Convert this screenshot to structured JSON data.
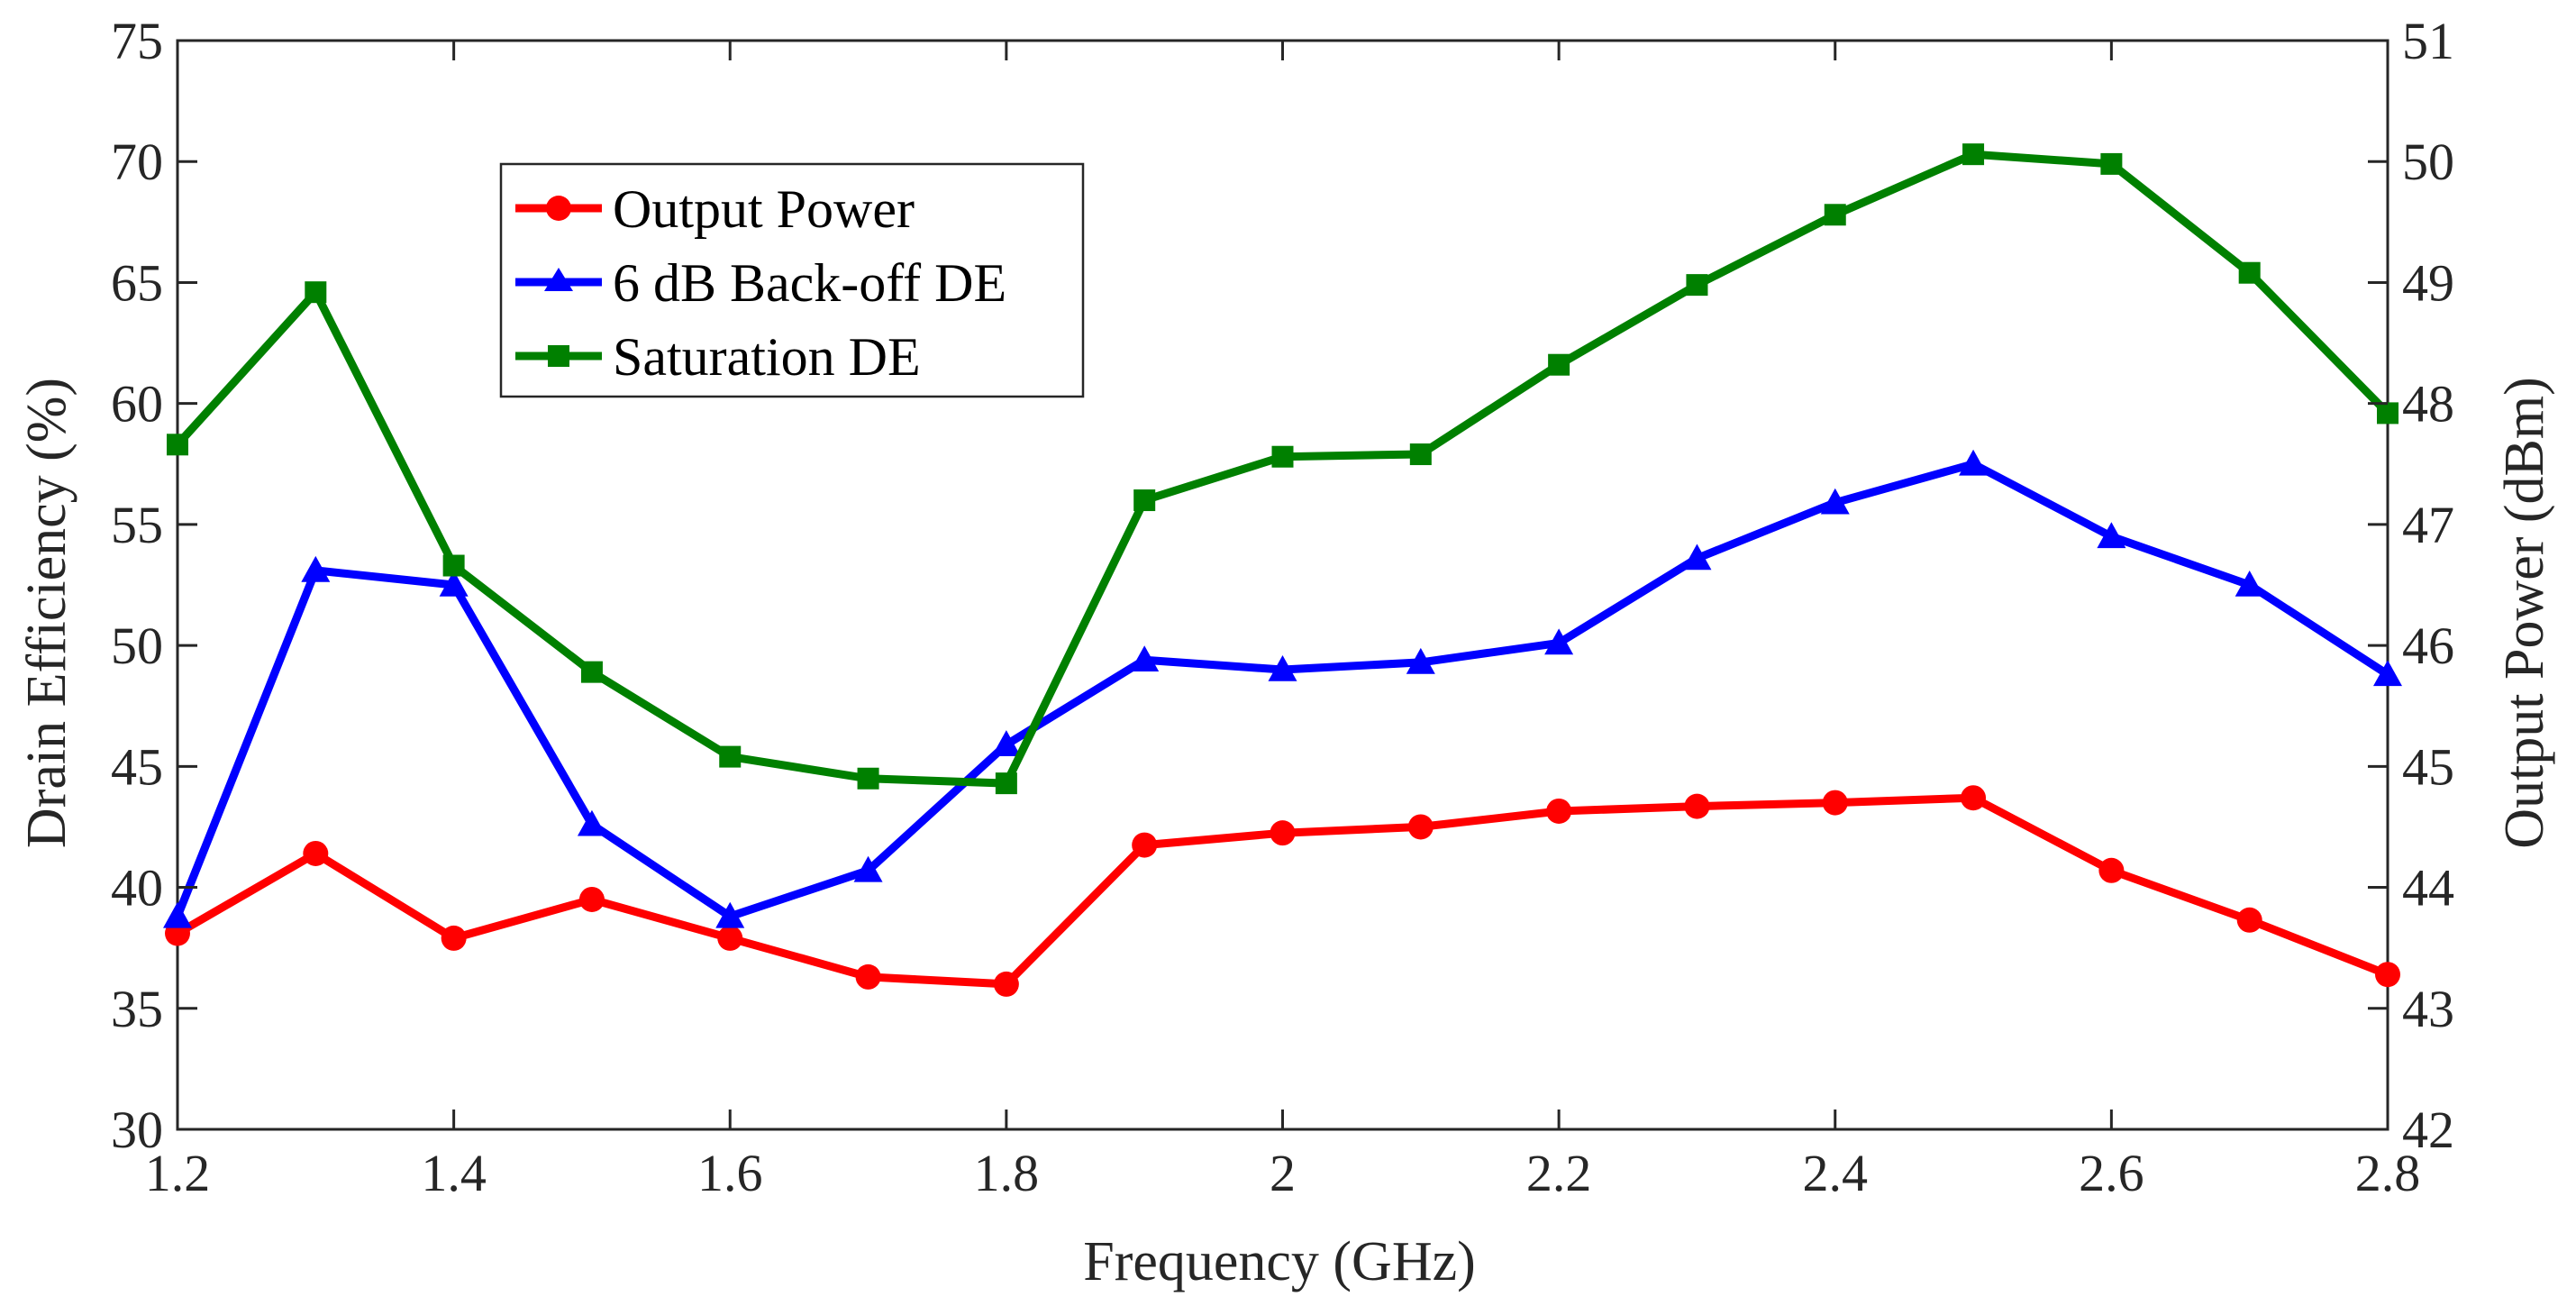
{
  "chart_data": {
    "type": "line",
    "title": "",
    "xlabel": "Frequency (GHz)",
    "ylabel_left": "Drain Efficiency (%)",
    "ylabel_right": "Output Power (dBm)",
    "xlim": [
      1.2,
      2.8
    ],
    "ylim_left": [
      30,
      75
    ],
    "ylim_right": [
      42,
      51
    ],
    "x_ticks": [
      "1.2",
      "1.4",
      "1.6",
      "1.8",
      "2",
      "2.2",
      "2.4",
      "2.6",
      "2.8"
    ],
    "y_left_ticks": [
      "30",
      "35",
      "40",
      "45",
      "50",
      "55",
      "60",
      "65",
      "70",
      "75"
    ],
    "y_right_ticks": [
      "42",
      "43",
      "44",
      "45",
      "46",
      "47",
      "48",
      "49",
      "50",
      "51"
    ],
    "grid": false,
    "legend_position": "upper-left",
    "x": [
      1.2,
      1.3,
      1.4,
      1.5,
      1.6,
      1.7,
      1.8,
      1.9,
      2.0,
      2.1,
      2.2,
      2.3,
      2.4,
      2.5,
      2.6,
      2.7,
      2.8
    ],
    "series": [
      {
        "name": "Output Power",
        "axis": "right",
        "marker": "circle",
        "color": "#ff0000",
        "values": [
          43.62,
          44.28,
          43.58,
          43.9,
          43.58,
          43.26,
          43.2,
          44.35,
          44.45,
          44.5,
          44.63,
          44.67,
          44.7,
          44.74,
          44.14,
          43.73,
          43.28
        ]
      },
      {
        "name": "6 dB Back-off DE",
        "axis": "left",
        "marker": "triangle",
        "color": "#0000ff",
        "values": [
          38.8,
          53.1,
          52.5,
          42.6,
          38.8,
          40.7,
          45.9,
          49.4,
          49.0,
          49.3,
          50.1,
          53.6,
          55.9,
          57.5,
          54.5,
          52.5,
          48.8
        ]
      },
      {
        "name": "Saturation DE",
        "axis": "left",
        "marker": "square",
        "color": "#008000",
        "values": [
          58.3,
          64.6,
          53.3,
          48.9,
          45.4,
          44.5,
          44.3,
          56.0,
          57.8,
          57.9,
          61.6,
          64.9,
          67.8,
          70.3,
          69.9,
          65.4,
          59.6
        ]
      }
    ]
  }
}
